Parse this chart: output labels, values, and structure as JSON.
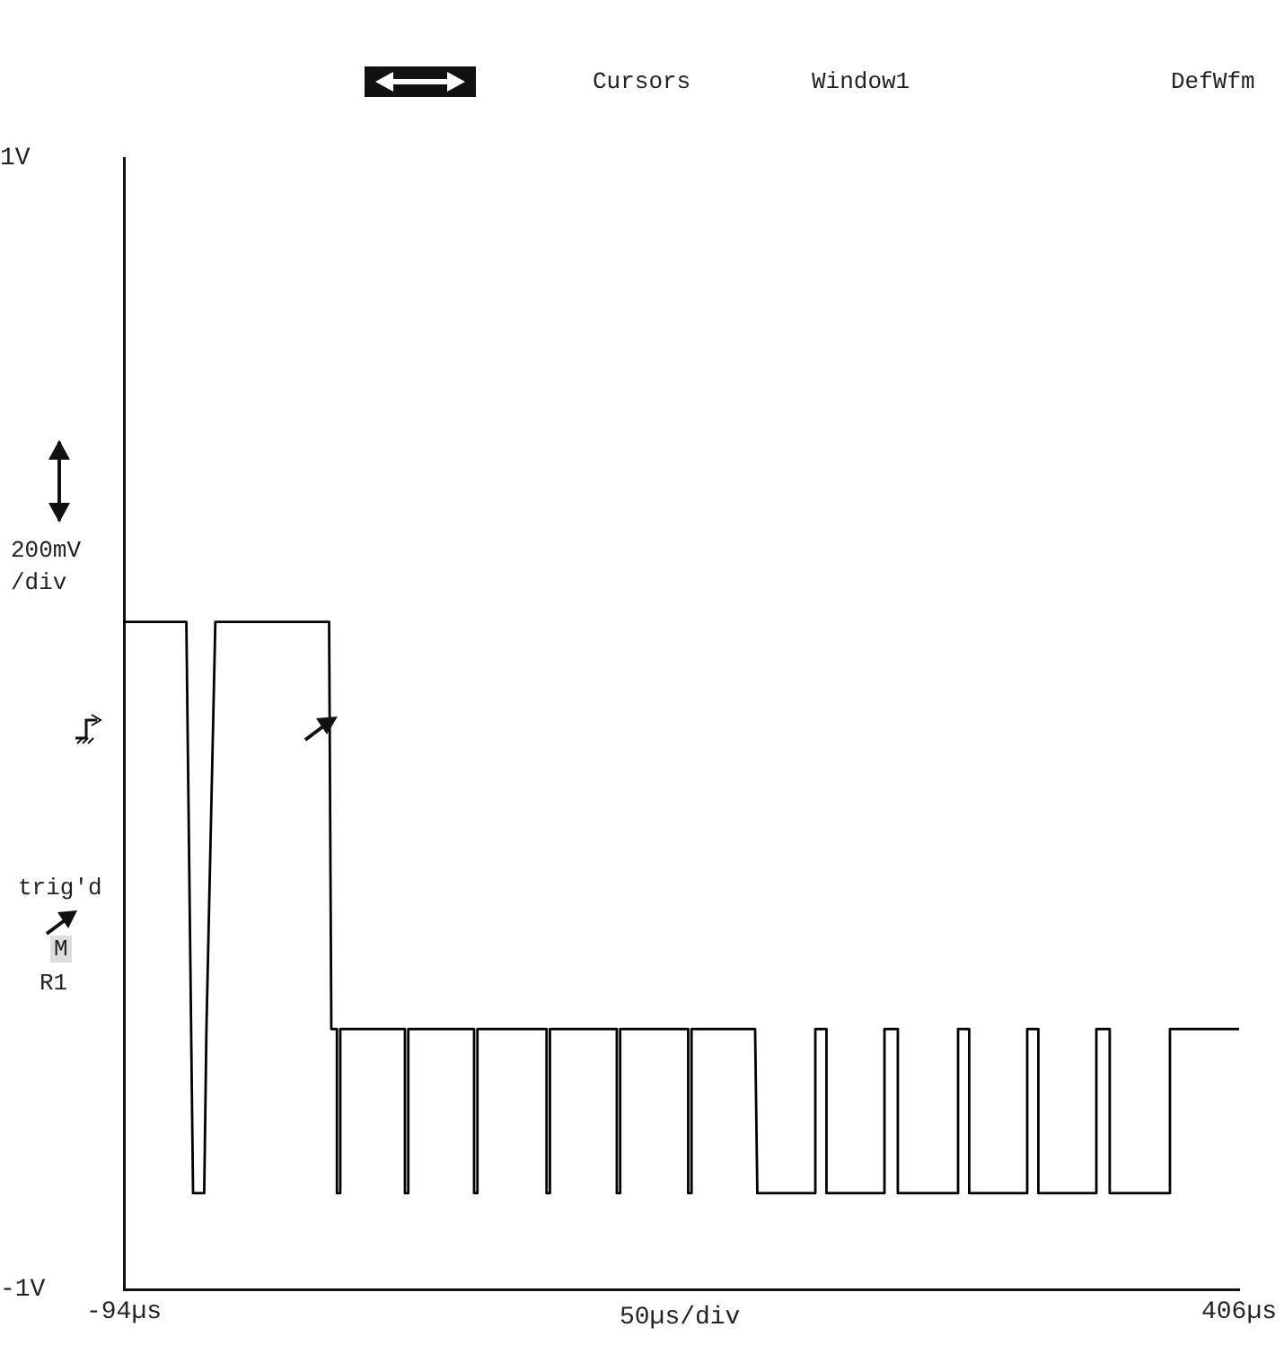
{
  "chart_data": {
    "type": "line",
    "ylabel": "200mV /div",
    "xlabel": "50µs/div",
    "annotations": [
      "Cursors",
      "Window1",
      "DefWfm",
      "trig'd",
      "M",
      "R1"
    ],
    "xlim": [
      -94,
      406
    ],
    "ylim": [
      -1,
      1
    ],
    "xticks": [
      {
        "value": -94,
        "label": "-94µs"
      },
      {
        "value": 406,
        "label": "406µs"
      }
    ],
    "yticks": [
      {
        "value": 1,
        "label": "1V"
      },
      {
        "value": -1,
        "label": "-1V"
      }
    ],
    "grid": false,
    "legend": false,
    "marker": "none",
    "line_style": "solid",
    "series": [
      {
        "color": "#000000",
        "x": [
          -94,
          -66,
          -63,
          -58,
          -57,
          -53,
          -2,
          -1,
          1.5,
          1.5,
          3,
          3,
          32,
          32,
          33.5,
          33.5,
          63,
          63,
          64.5,
          64.5,
          95.5,
          95.5,
          97,
          97,
          127,
          127,
          128.5,
          128.5,
          159,
          159,
          160.5,
          160.5,
          189,
          190,
          216,
          216,
          221,
          221,
          247,
          247,
          253,
          253,
          280,
          280,
          285,
          285,
          311,
          311,
          316,
          316,
          342,
          342,
          348,
          348,
          375,
          375,
          406
        ],
        "values": [
          0.18,
          0.18,
          -0.83,
          -0.83,
          -0.54,
          0.18,
          0.18,
          -0.54,
          -0.54,
          -0.83,
          -0.83,
          -0.54,
          -0.54,
          -0.83,
          -0.83,
          -0.54,
          -0.54,
          -0.83,
          -0.83,
          -0.54,
          -0.54,
          -0.83,
          -0.83,
          -0.54,
          -0.54,
          -0.83,
          -0.83,
          -0.54,
          -0.54,
          -0.83,
          -0.83,
          -0.54,
          -0.54,
          -0.83,
          -0.83,
          -0.54,
          -0.54,
          -0.83,
          -0.83,
          -0.54,
          -0.54,
          -0.83,
          -0.83,
          -0.54,
          -0.54,
          -0.83,
          -0.83,
          -0.54,
          -0.54,
          -0.83,
          -0.83,
          -0.54,
          -0.54,
          -0.83,
          -0.83,
          -0.54,
          -0.54
        ]
      }
    ]
  }
}
